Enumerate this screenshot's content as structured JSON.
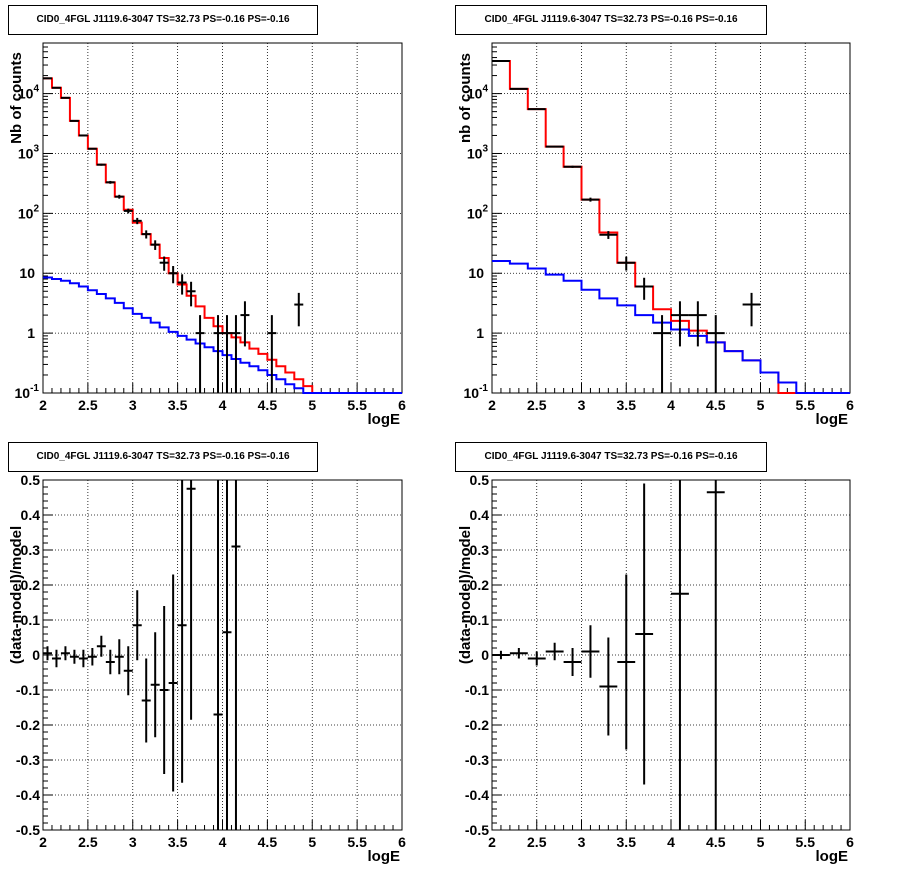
{
  "colors": {
    "model_total": "#ff0000",
    "model_source": "#0000ff",
    "data": "#000000",
    "frame": "#000000",
    "grid": "#000000"
  },
  "chart_data": [
    {
      "id": "counts-fine",
      "type": "line",
      "title": "CID0_4FGL J1119.6-3047 TS=32.73 PS=-0.16 PS=-0.16",
      "xlabel": "logE",
      "ylabel": "Nb of counts",
      "xlim": [
        2,
        6
      ],
      "ylim": [
        0.1,
        70000
      ],
      "yscale": "log",
      "grid": true,
      "xticks": [
        "2",
        "2.5",
        "3",
        "3.5",
        "4",
        "4.5",
        "5",
        "5.5",
        "6"
      ],
      "yticks": [
        "10^-1",
        "1",
        "10",
        "10^2",
        "10^3",
        "10^4"
      ],
      "bin_edges": [
        2.0,
        2.1,
        2.2,
        2.3,
        2.4,
        2.5,
        2.6,
        2.7,
        2.8,
        2.9,
        3.0,
        3.1,
        3.2,
        3.3,
        3.4,
        3.5,
        3.6,
        3.7,
        3.8,
        3.9,
        4.0,
        4.1,
        4.2,
        4.3,
        4.4,
        4.5,
        4.6,
        4.7,
        4.8,
        4.9,
        5.0,
        5.1,
        5.2,
        5.3,
        5.4,
        5.5,
        5.6,
        5.7,
        5.8,
        5.9,
        6.0
      ],
      "series": [
        {
          "name": "model_total",
          "color": "#ff0000",
          "values": [
            18000,
            12500,
            8500,
            3500,
            2000,
            1200,
            650,
            330,
            190,
            115,
            70,
            45,
            30,
            18,
            10,
            6.5,
            4.2,
            2.8,
            1.8,
            1.3,
            1.0,
            0.85,
            0.7,
            0.55,
            0.45,
            0.36,
            0.28,
            0.22,
            0.17,
            0.13,
            0.1,
            0.1,
            0.1,
            0.1,
            0.1,
            0.1,
            0.1,
            0.1,
            0.1,
            0.1
          ]
        },
        {
          "name": "model_source",
          "color": "#0000ff",
          "values": [
            8.5,
            8.0,
            7.5,
            6.8,
            6.0,
            5.2,
            4.5,
            3.8,
            3.2,
            2.6,
            2.1,
            1.8,
            1.5,
            1.25,
            1.05,
            0.9,
            0.78,
            0.67,
            0.58,
            0.5,
            0.43,
            0.37,
            0.32,
            0.28,
            0.24,
            0.2,
            0.17,
            0.14,
            0.12,
            0.1,
            0.1,
            0.1,
            0.1,
            0.1,
            0.1,
            0.1,
            0.1,
            0.1,
            0.1,
            0.1
          ]
        }
      ],
      "data_points": [
        {
          "x": 2.05,
          "y": 18000,
          "err": 134
        },
        {
          "x": 2.15,
          "y": 12500,
          "err": 112
        },
        {
          "x": 2.25,
          "y": 8500,
          "err": 92
        },
        {
          "x": 2.35,
          "y": 3500,
          "err": 59
        },
        {
          "x": 2.45,
          "y": 2000,
          "err": 45
        },
        {
          "x": 2.55,
          "y": 1200,
          "err": 35
        },
        {
          "x": 2.65,
          "y": 650,
          "err": 25
        },
        {
          "x": 2.75,
          "y": 330,
          "err": 18
        },
        {
          "x": 2.85,
          "y": 190,
          "err": 14
        },
        {
          "x": 2.95,
          "y": 110,
          "err": 10
        },
        {
          "x": 3.05,
          "y": 75,
          "err": 9
        },
        {
          "x": 3.15,
          "y": 45,
          "err": 7
        },
        {
          "x": 3.25,
          "y": 30,
          "err": 5.5
        },
        {
          "x": 3.35,
          "y": 15,
          "err": 4
        },
        {
          "x": 3.45,
          "y": 10,
          "err": 3.2
        },
        {
          "x": 3.55,
          "y": 7,
          "err": 2.6
        },
        {
          "x": 3.65,
          "y": 5,
          "err": 2.2
        },
        {
          "x": 3.75,
          "y": 1,
          "err": 1
        },
        {
          "x": 3.95,
          "y": 1,
          "err": 1
        },
        {
          "x": 4.05,
          "y": 1,
          "err": 1
        },
        {
          "x": 4.15,
          "y": 1,
          "err": 1
        },
        {
          "x": 4.25,
          "y": 2,
          "err": 1.4
        },
        {
          "x": 4.55,
          "y": 1,
          "err": 1
        },
        {
          "x": 4.85,
          "y": 3,
          "err": 1.7
        }
      ]
    },
    {
      "id": "counts-coarse",
      "type": "line",
      "title": "CID0_4FGL J1119.6-3047 TS=32.73 PS=-0.16 PS=-0.16",
      "xlabel": "logE",
      "ylabel": "nb of counts",
      "xlim": [
        2,
        6
      ],
      "ylim": [
        0.1,
        70000
      ],
      "yscale": "log",
      "grid": true,
      "xticks": [
        "2",
        "2.5",
        "3",
        "3.5",
        "4",
        "4.5",
        "5",
        "5.5",
        "6"
      ],
      "yticks": [
        "10^-1",
        "1",
        "10",
        "10^2",
        "10^3",
        "10^4"
      ],
      "bin_edges": [
        2.0,
        2.2,
        2.4,
        2.6,
        2.8,
        3.0,
        3.2,
        3.4,
        3.6,
        3.8,
        4.0,
        4.2,
        4.4,
        4.6,
        4.8,
        5.0,
        5.2,
        5.4,
        5.6,
        5.8,
        6.0
      ],
      "series": [
        {
          "name": "model_total",
          "color": "#ff0000",
          "values": [
            35000,
            12000,
            5500,
            1300,
            600,
            170,
            48,
            15,
            6,
            2.5,
            1.6,
            1.1,
            0.7,
            0.5,
            0.35,
            0.22,
            0.1,
            0.1,
            0.1,
            0.1
          ]
        },
        {
          "name": "model_source",
          "color": "#0000ff",
          "values": [
            16,
            14.5,
            12,
            9.5,
            7.5,
            5.3,
            3.8,
            2.9,
            2.0,
            1.5,
            1.15,
            0.9,
            0.7,
            0.5,
            0.35,
            0.22,
            0.15,
            0.1,
            0.1,
            0.1
          ]
        }
      ],
      "data_points": [
        {
          "x": 2.1,
          "y": 35000,
          "err": 187
        },
        {
          "x": 2.3,
          "y": 12000,
          "err": 110
        },
        {
          "x": 2.5,
          "y": 5500,
          "err": 74
        },
        {
          "x": 2.7,
          "y": 1300,
          "err": 36
        },
        {
          "x": 2.9,
          "y": 600,
          "err": 24
        },
        {
          "x": 3.1,
          "y": 170,
          "err": 13
        },
        {
          "x": 3.3,
          "y": 44,
          "err": 6.6
        },
        {
          "x": 3.5,
          "y": 15,
          "err": 3.9
        },
        {
          "x": 3.7,
          "y": 6,
          "err": 2.4
        },
        {
          "x": 3.9,
          "y": 1,
          "err": 1
        },
        {
          "x": 4.1,
          "y": 2,
          "err": 1.4
        },
        {
          "x": 4.3,
          "y": 2,
          "err": 1.4
        },
        {
          "x": 4.5,
          "y": 1,
          "err": 1
        },
        {
          "x": 4.9,
          "y": 3,
          "err": 1.7
        }
      ]
    },
    {
      "id": "residuals-fine",
      "type": "scatter",
      "title": "CID0_4FGL J1119.6-3047 TS=32.73 PS=-0.16 PS=-0.16",
      "xlabel": "logE",
      "ylabel": "(data-model)/model",
      "xlim": [
        2,
        6
      ],
      "ylim": [
        -0.5,
        0.5
      ],
      "grid": true,
      "xticks": [
        "2",
        "2.5",
        "3",
        "3.5",
        "4",
        "4.5",
        "5",
        "5.5",
        "6"
      ],
      "yticks": [
        "-0.5",
        "-0.4",
        "-0.3",
        "-0.2",
        "-0.1",
        "0",
        "0.1",
        "0.2",
        "0.3",
        "0.4",
        "0.5"
      ],
      "points": [
        {
          "x": 2.05,
          "y": 0.005,
          "err": 0.02,
          "xerr": 0.05
        },
        {
          "x": 2.15,
          "y": -0.01,
          "err": 0.025,
          "xerr": 0.05
        },
        {
          "x": 2.25,
          "y": 0.005,
          "err": 0.02,
          "xerr": 0.05
        },
        {
          "x": 2.35,
          "y": -0.005,
          "err": 0.02,
          "xerr": 0.05
        },
        {
          "x": 2.45,
          "y": -0.01,
          "err": 0.025,
          "xerr": 0.05
        },
        {
          "x": 2.55,
          "y": -0.005,
          "err": 0.025,
          "xerr": 0.05
        },
        {
          "x": 2.65,
          "y": 0.025,
          "err": 0.03,
          "xerr": 0.05
        },
        {
          "x": 2.75,
          "y": -0.02,
          "err": 0.035,
          "xerr": 0.05
        },
        {
          "x": 2.85,
          "y": -0.005,
          "err": 0.05,
          "xerr": 0.05
        },
        {
          "x": 2.95,
          "y": -0.045,
          "err": 0.07,
          "xerr": 0.05
        },
        {
          "x": 3.05,
          "y": 0.085,
          "err": 0.1,
          "xerr": 0.05
        },
        {
          "x": 3.15,
          "y": -0.13,
          "err": 0.12,
          "xerr": 0.05
        },
        {
          "x": 3.25,
          "y": -0.085,
          "err": 0.15,
          "xerr": 0.05
        },
        {
          "x": 3.35,
          "y": -0.1,
          "err": 0.24,
          "xerr": 0.05
        },
        {
          "x": 3.45,
          "y": -0.08,
          "err": 0.31,
          "xerr": 0.05
        },
        {
          "x": 3.55,
          "y": 0.085,
          "err": 0.45,
          "xerr": 0.05
        },
        {
          "x": 3.65,
          "y": 0.475,
          "err": 0.66,
          "xerr": 0.05
        },
        {
          "x": 3.95,
          "y": -0.17,
          "err": 0.9,
          "xerr": 0.05
        },
        {
          "x": 4.05,
          "y": 0.065,
          "err": 1.0,
          "xerr": 0.05
        },
        {
          "x": 4.15,
          "y": 0.31,
          "err": 1.0,
          "xerr": 0.05
        }
      ]
    },
    {
      "id": "residuals-coarse",
      "type": "scatter",
      "title": "CID0_4FGL J1119.6-3047 TS=32.73 PS=-0.16 PS=-0.16",
      "xlabel": "logE",
      "ylabel": "(data-model)/model",
      "xlim": [
        2,
        6
      ],
      "ylim": [
        -0.5,
        0.5
      ],
      "grid": true,
      "xticks": [
        "2",
        "2.5",
        "3",
        "3.5",
        "4",
        "4.5",
        "5",
        "5.5",
        "6"
      ],
      "yticks": [
        "-0.5",
        "-0.4",
        "-0.3",
        "-0.2",
        "-0.1",
        "0",
        "0.1",
        "0.2",
        "0.3",
        "0.4",
        "0.5"
      ],
      "points": [
        {
          "x": 2.1,
          "y": 0.0,
          "err": 0.012,
          "xerr": 0.1
        },
        {
          "x": 2.3,
          "y": 0.005,
          "err": 0.015,
          "xerr": 0.1
        },
        {
          "x": 2.5,
          "y": -0.01,
          "err": 0.02,
          "xerr": 0.1
        },
        {
          "x": 2.7,
          "y": 0.01,
          "err": 0.025,
          "xerr": 0.1
        },
        {
          "x": 2.9,
          "y": -0.02,
          "err": 0.04,
          "xerr": 0.1
        },
        {
          "x": 3.1,
          "y": 0.01,
          "err": 0.075,
          "xerr": 0.1
        },
        {
          "x": 3.3,
          "y": -0.09,
          "err": 0.14,
          "xerr": 0.1
        },
        {
          "x": 3.5,
          "y": -0.02,
          "err": 0.25,
          "xerr": 0.1
        },
        {
          "x": 3.7,
          "y": 0.06,
          "err": 0.43,
          "xerr": 0.1
        },
        {
          "x": 4.1,
          "y": 0.175,
          "err": 1.0,
          "xerr": 0.1
        },
        {
          "x": 4.5,
          "y": 0.465,
          "err": 1.0,
          "xerr": 0.1
        }
      ]
    }
  ]
}
